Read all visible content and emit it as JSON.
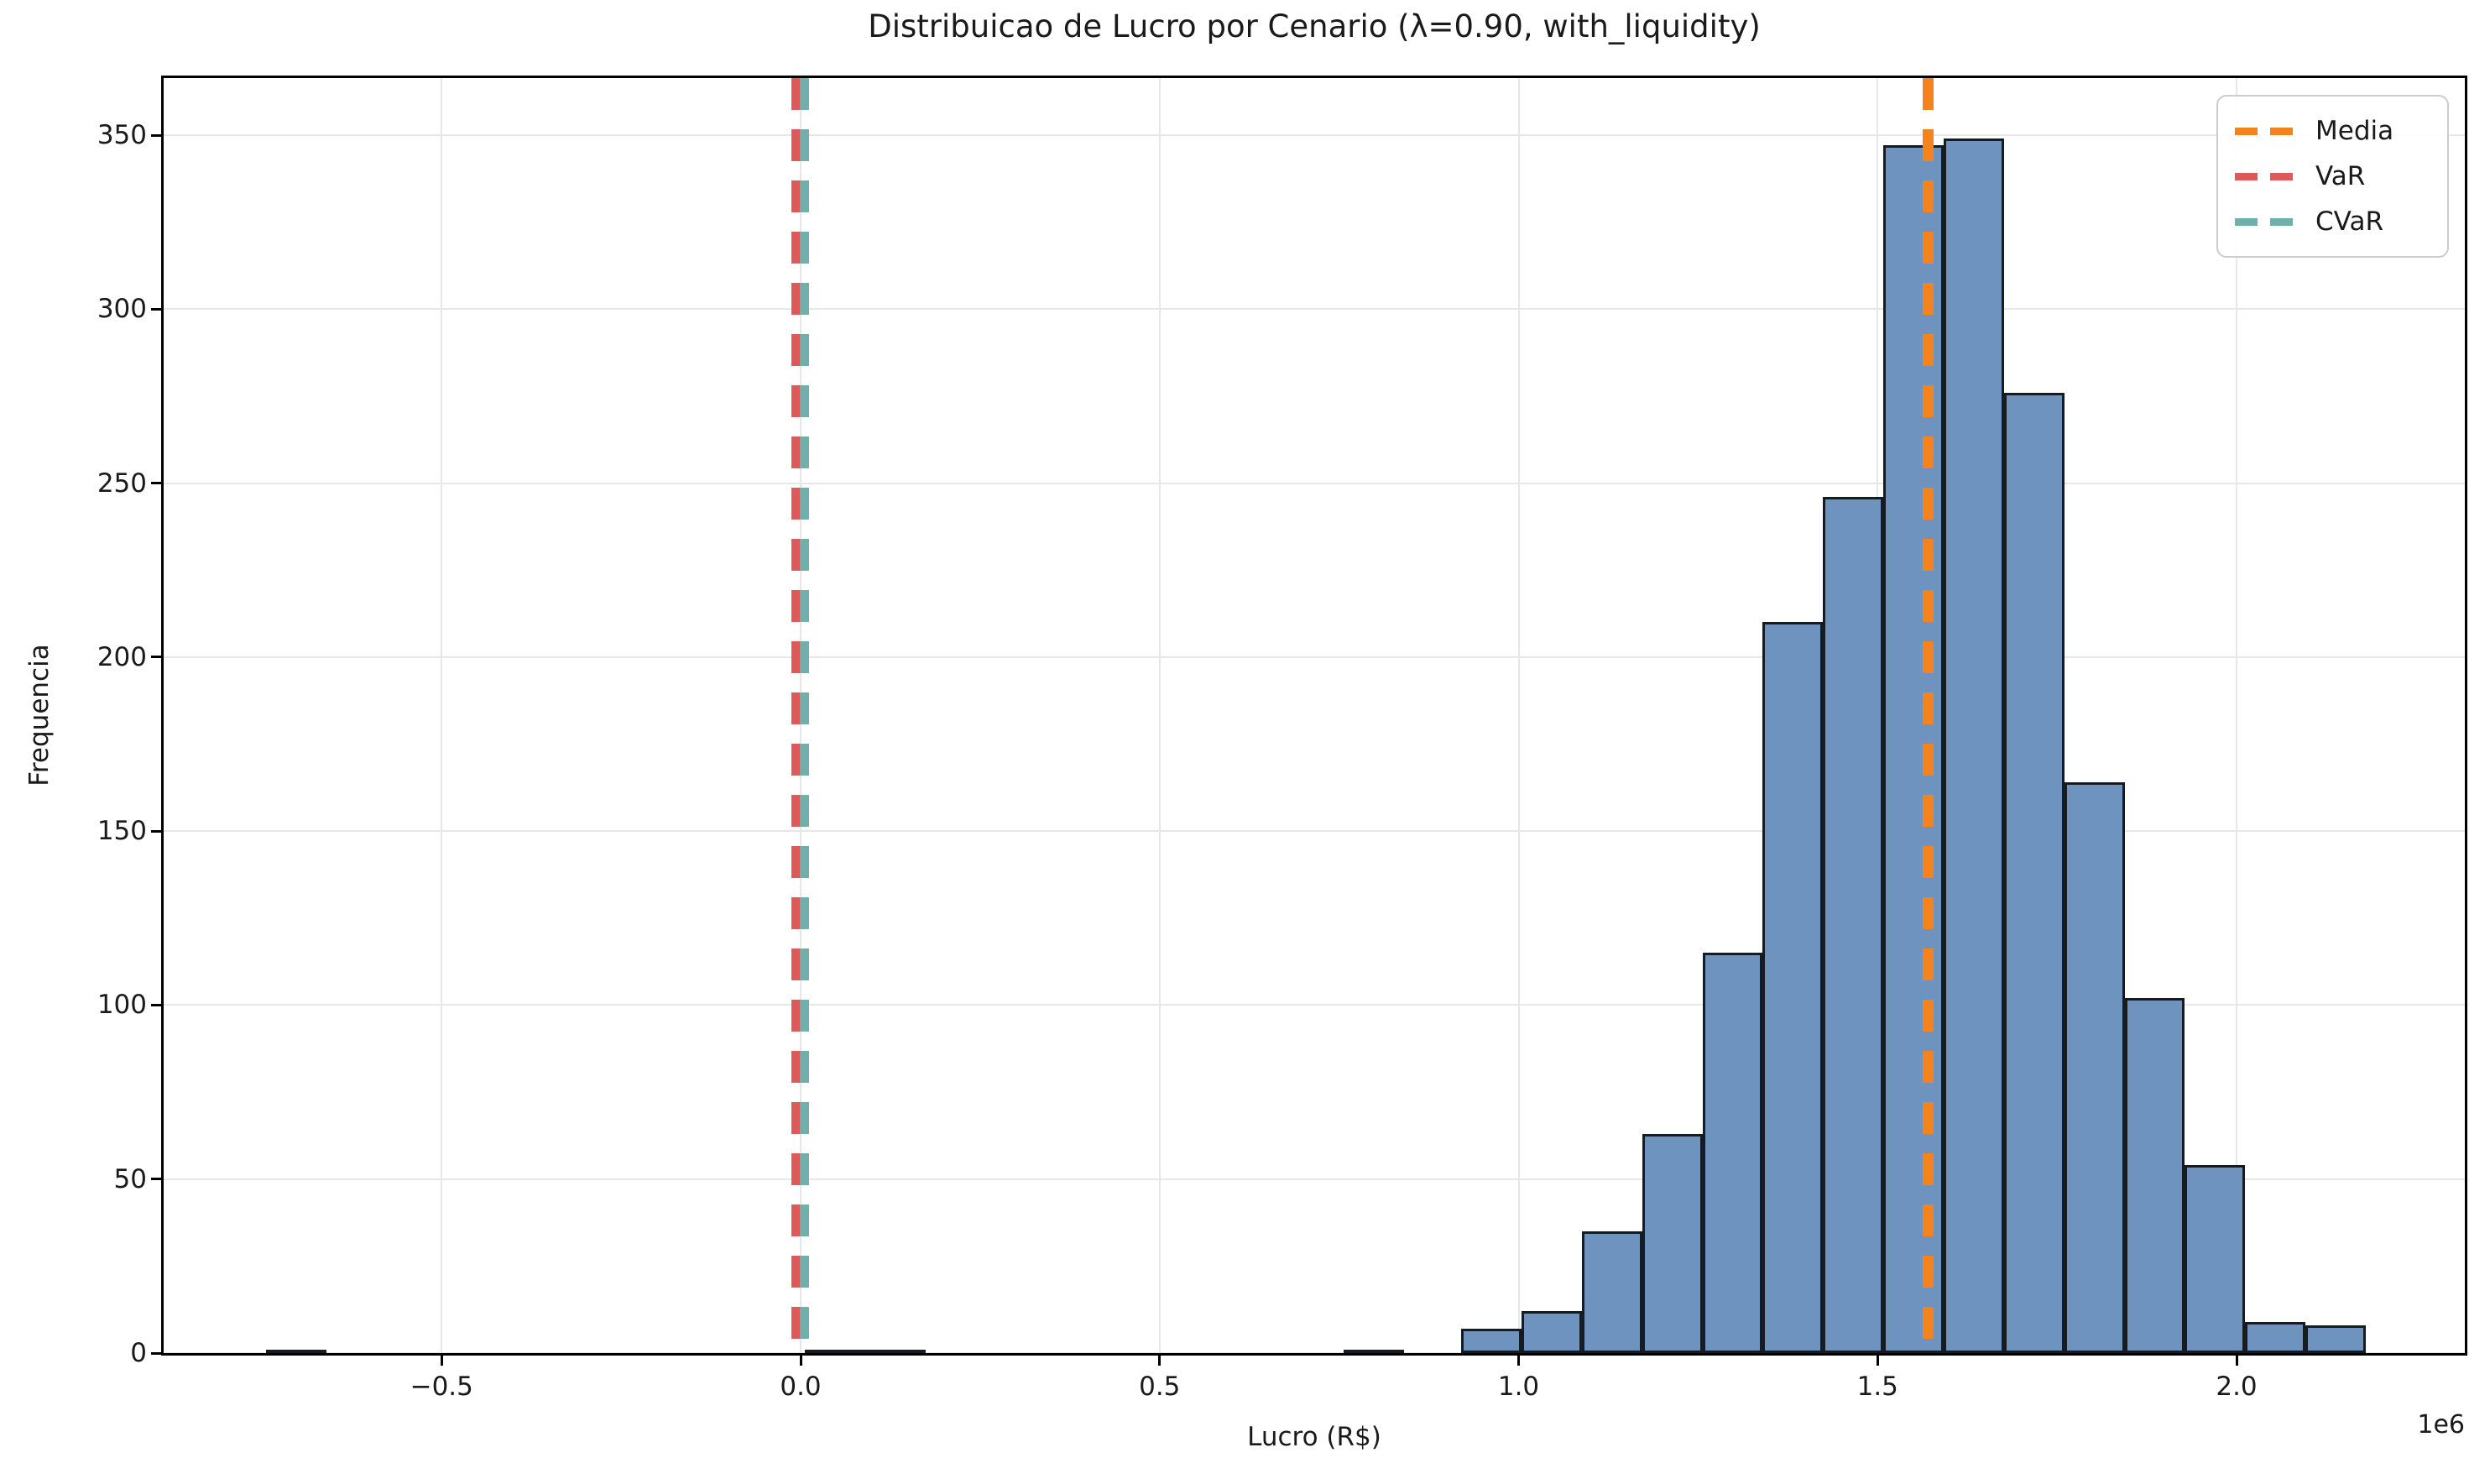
{
  "title": "Distribuicao de Lucro por Cenario (λ=0.90, with_liquidity)",
  "xlabel": "Lucro (R$)",
  "ylabel": "Frequencia",
  "axis_offset_label": "1e6",
  "legend": [
    {
      "label": "Media",
      "color": "#f5831d"
    },
    {
      "label": "VaR",
      "color": "#dd5a5a"
    },
    {
      "label": "CVaR",
      "color": "#6fb0aa"
    }
  ],
  "chart_data": {
    "type": "bar",
    "subtype": "histogram",
    "title": "Distribuicao de Lucro por Cenario (λ=0.90, with_liquidity)",
    "xlabel": "Lucro (R$)",
    "ylabel": "Frequencia",
    "x_scale_offset": "1e6",
    "grid": true,
    "legend_position": "upper right",
    "xlim": [
      -890000,
      2320000
    ],
    "ylim": [
      0,
      366
    ],
    "bin_width": 84000,
    "bars": [
      {
        "x0": -745000,
        "count": 1
      },
      {
        "x0": 6000,
        "count": 1
      },
      {
        "x0": 90000,
        "count": 1
      },
      {
        "x0": 756000,
        "count": 1
      },
      {
        "x0": 920000,
        "count": 7
      },
      {
        "x0": 1004000,
        "count": 12
      },
      {
        "x0": 1088000,
        "count": 35
      },
      {
        "x0": 1172000,
        "count": 63
      },
      {
        "x0": 1256000,
        "count": 115
      },
      {
        "x0": 1340000,
        "count": 210
      },
      {
        "x0": 1424000,
        "count": 246
      },
      {
        "x0": 1508000,
        "count": 347
      },
      {
        "x0": 1592000,
        "count": 349
      },
      {
        "x0": 1676000,
        "count": 276
      },
      {
        "x0": 1760000,
        "count": 164
      },
      {
        "x0": 1844000,
        "count": 102
      },
      {
        "x0": 1928000,
        "count": 54
      },
      {
        "x0": 2012000,
        "count": 9
      },
      {
        "x0": 2096000,
        "count": 8
      }
    ],
    "vlines": [
      {
        "name": "Media",
        "value": 1571000,
        "style": "dashed",
        "color": "#f5831d"
      },
      {
        "name": "VaR",
        "value": -7000,
        "style": "dashed",
        "color": "#dd5a5a"
      },
      {
        "name": "CVaR",
        "value": 4700,
        "style": "dashed",
        "color": "#6fb0aa"
      }
    ],
    "xticks": [
      {
        "value": -500000,
        "label": "−0.5"
      },
      {
        "value": 0,
        "label": "0.0"
      },
      {
        "value": 500000,
        "label": "0.5"
      },
      {
        "value": 1000000,
        "label": "1.0"
      },
      {
        "value": 1500000,
        "label": "1.5"
      },
      {
        "value": 2000000,
        "label": "2.0"
      }
    ],
    "yticks": [
      {
        "value": 0,
        "label": "0"
      },
      {
        "value": 50,
        "label": "50"
      },
      {
        "value": 100,
        "label": "100"
      },
      {
        "value": 150,
        "label": "150"
      },
      {
        "value": 200,
        "label": "200"
      },
      {
        "value": 250,
        "label": "250"
      },
      {
        "value": 300,
        "label": "300"
      },
      {
        "value": 350,
        "label": "350"
      }
    ],
    "colors": {
      "bar_fill": "#6d93be",
      "bar_edge": "#161b22",
      "grid": "#e7e7e7",
      "media_line": "#f5831d",
      "var_line": "#dd5a5a",
      "cvar_line": "#6fb0aa"
    }
  }
}
